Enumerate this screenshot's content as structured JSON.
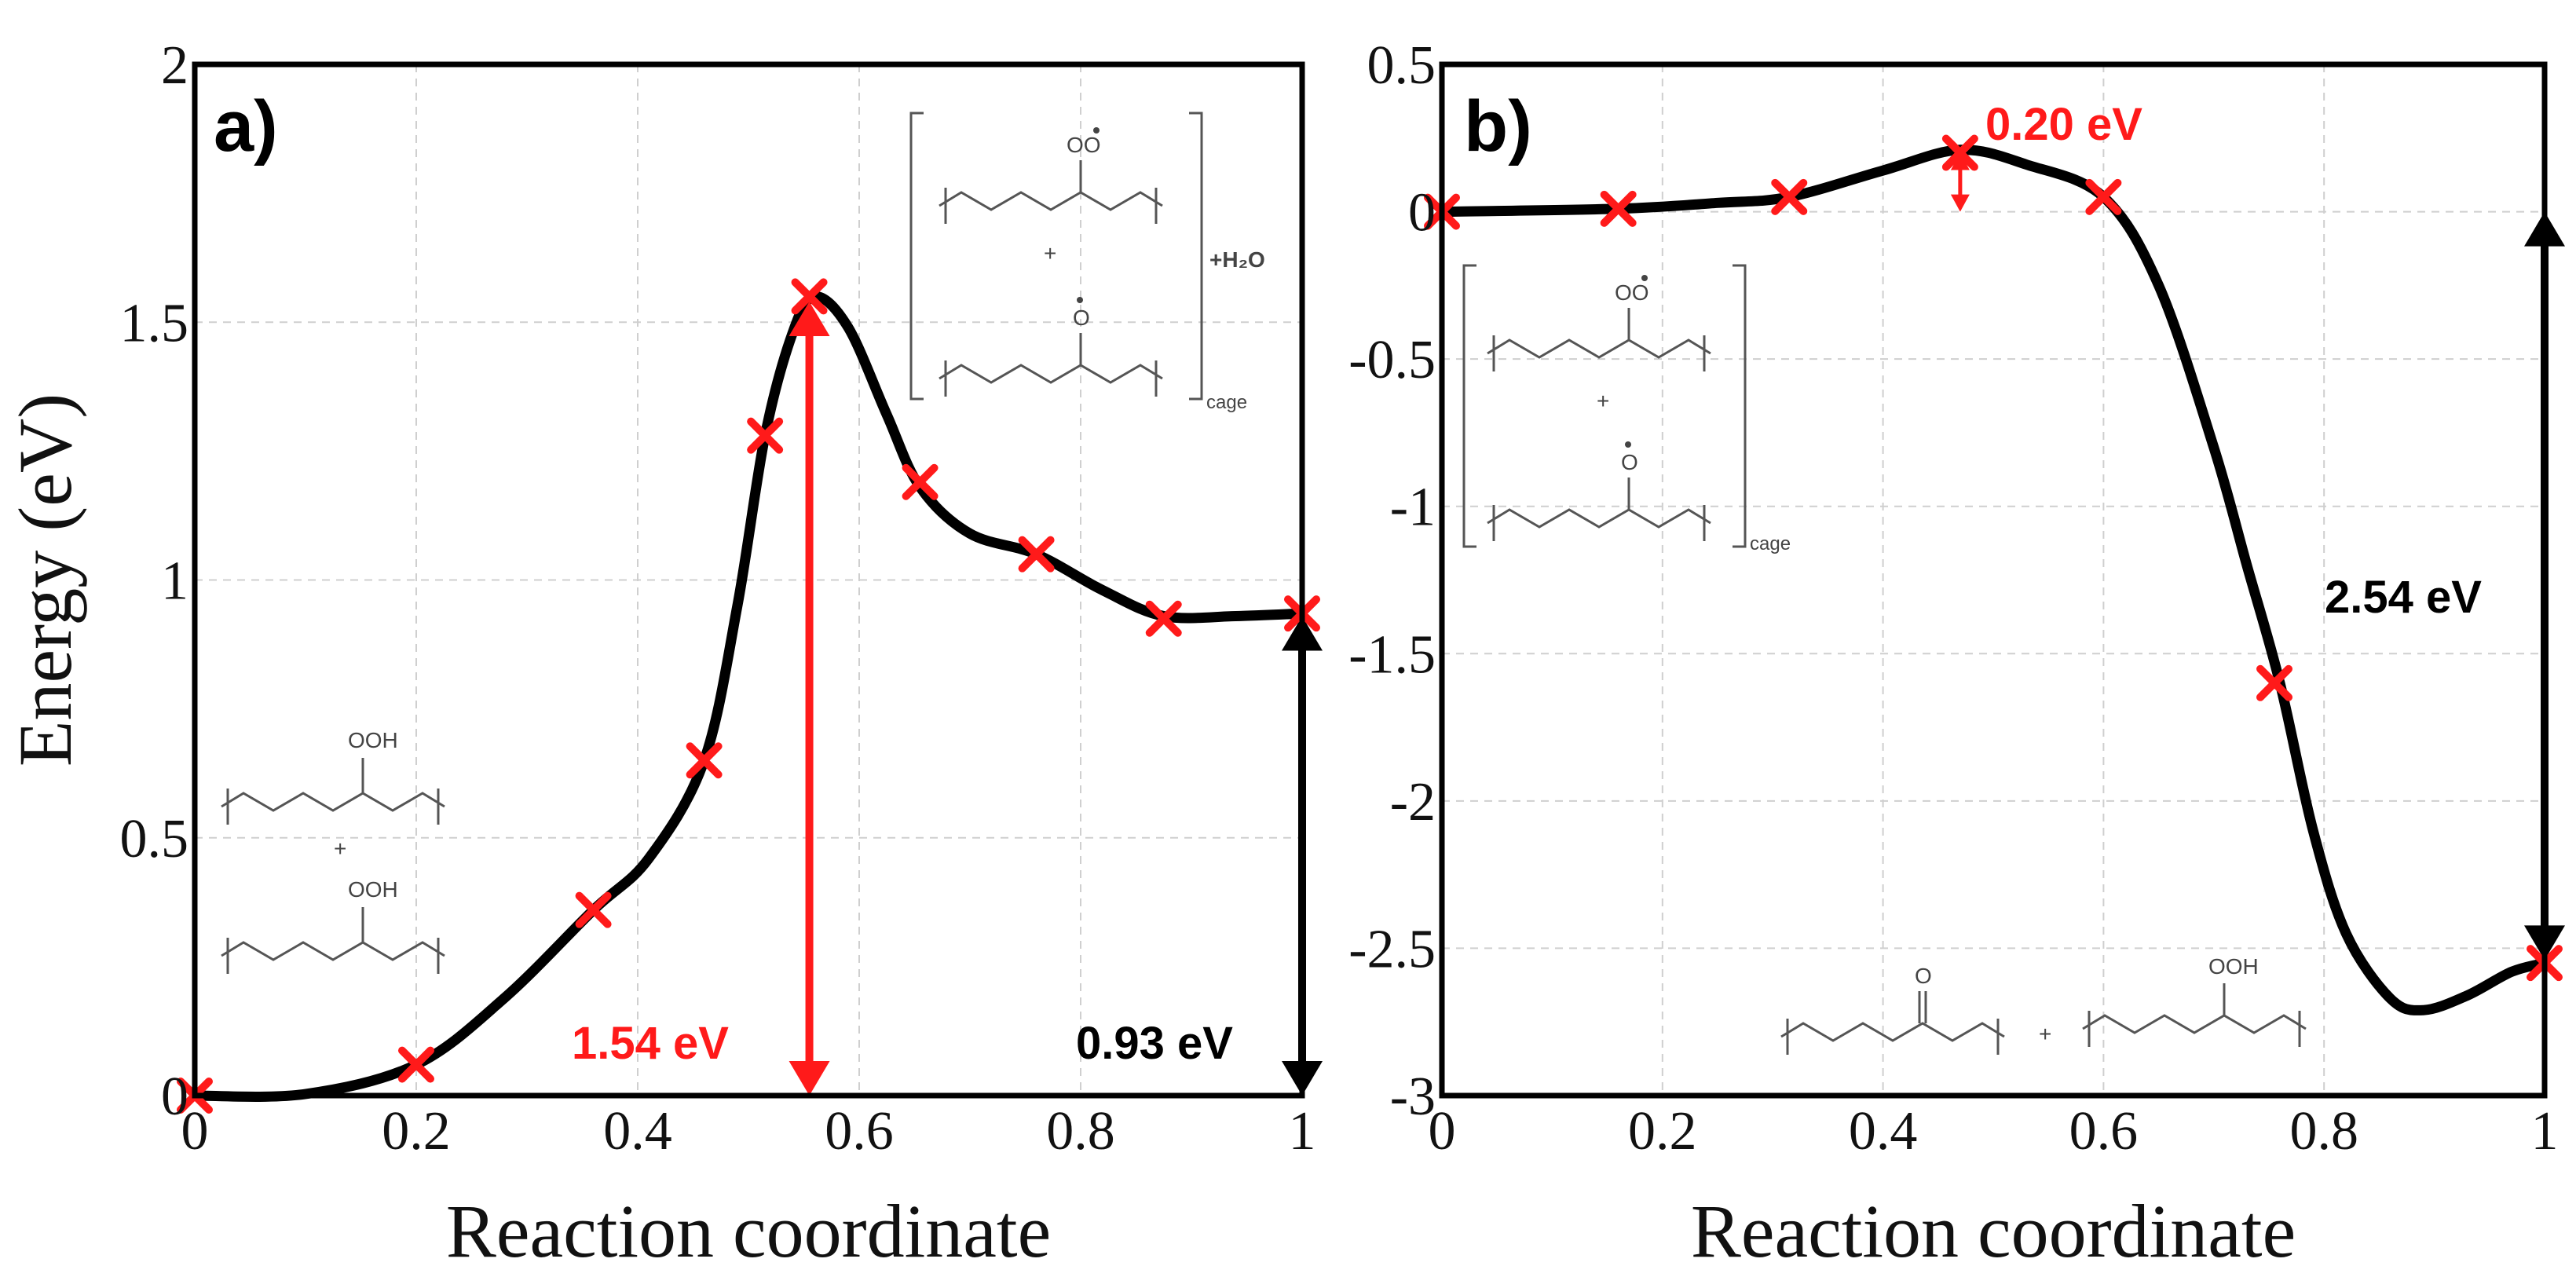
{
  "chart_data": [
    {
      "type": "line",
      "panel_label": "a)",
      "xlabel": "Reaction coordinate",
      "ylabel": "Energy (eV)",
      "xlim": [
        0,
        1
      ],
      "ylim": [
        0,
        2
      ],
      "xticks": [
        "0",
        "0.2",
        "0.4",
        "0.6",
        "0.8",
        "1"
      ],
      "yticks": [
        "0",
        "0.5",
        "1",
        "1.5",
        "2"
      ],
      "grid": true,
      "curve": {
        "x": [
          0,
          0.1,
          0.2,
          0.28,
          0.36,
          0.41,
          0.46,
          0.49,
          0.515,
          0.54,
          0.56,
          0.59,
          0.625,
          0.655,
          0.7,
          0.76,
          0.82,
          0.875,
          0.94,
          1.0
        ],
        "y": [
          0,
          0.003,
          0.06,
          0.19,
          0.36,
          0.46,
          0.65,
          0.95,
          1.28,
          1.48,
          1.55,
          1.49,
          1.32,
          1.18,
          1.09,
          1.05,
          0.98,
          0.93,
          0.93,
          0.935
        ]
      },
      "markers": {
        "x": [
          0,
          0.2,
          0.36,
          0.46,
          0.515,
          0.555,
          0.655,
          0.76,
          0.875,
          1.0
        ],
        "y": [
          0,
          0.06,
          0.36,
          0.65,
          1.28,
          1.55,
          1.19,
          1.05,
          0.925,
          0.935
        ]
      },
      "annotations": [
        {
          "text": "1.54 eV",
          "color": "#ff1a1a",
          "arrow_x": 0.555,
          "from_y": 0,
          "to_y": 1.54
        },
        {
          "text": "0.93 eV",
          "color": "#000000",
          "arrow_x": 1.0,
          "from_y": 0,
          "to_y": 0.93
        }
      ]
    },
    {
      "type": "line",
      "panel_label": "b)",
      "xlabel": "Reaction coordinate",
      "ylabel": "",
      "xlim": [
        0,
        1
      ],
      "ylim": [
        -3,
        0.5
      ],
      "xticks": [
        "0",
        "0.2",
        "0.4",
        "0.6",
        "0.8",
        "1"
      ],
      "yticks": [
        "0.5",
        "0",
        "-0.5",
        "-1",
        "-1.5",
        "-2",
        "-2.5",
        "-3"
      ],
      "grid": true,
      "curve": {
        "x": [
          0,
          0.16,
          0.25,
          0.315,
          0.4,
          0.47,
          0.53,
          0.6,
          0.65,
          0.7,
          0.73,
          0.76,
          0.79,
          0.82,
          0.86,
          0.89,
          0.93,
          0.97,
          1.0
        ],
        "y": [
          0,
          0.01,
          0.03,
          0.05,
          0.14,
          0.21,
          0.16,
          0.05,
          -0.25,
          -0.8,
          -1.2,
          -1.6,
          -2.1,
          -2.45,
          -2.67,
          -2.71,
          -2.66,
          -2.58,
          -2.55
        ]
      },
      "markers": {
        "x": [
          0,
          0.16,
          0.315,
          0.47,
          0.6,
          0.755,
          1.0
        ],
        "y": [
          0,
          0.01,
          0.05,
          0.2,
          0.05,
          -1.6,
          -2.55
        ]
      },
      "annotations": [
        {
          "text": "0.20 eV",
          "color": "#ff1a1a",
          "arrow_x": 0.47,
          "from_y": 0.0,
          "to_y": 0.2
        },
        {
          "text": "2.54 eV",
          "color": "#000000",
          "arrow_x": 1.0,
          "from_y": 0.0,
          "to_y": -2.54
        }
      ]
    }
  ],
  "chemistry_labels": {
    "ooh": "OOH",
    "oo_radical": "OO",
    "o_radical": "O",
    "ketone_o": "O",
    "plus": "+",
    "water": "+H₂O",
    "cage": "cage"
  },
  "colors": {
    "marker": "#ff1a1a",
    "curve": "#000000",
    "highlight": "#ff1a1a"
  }
}
